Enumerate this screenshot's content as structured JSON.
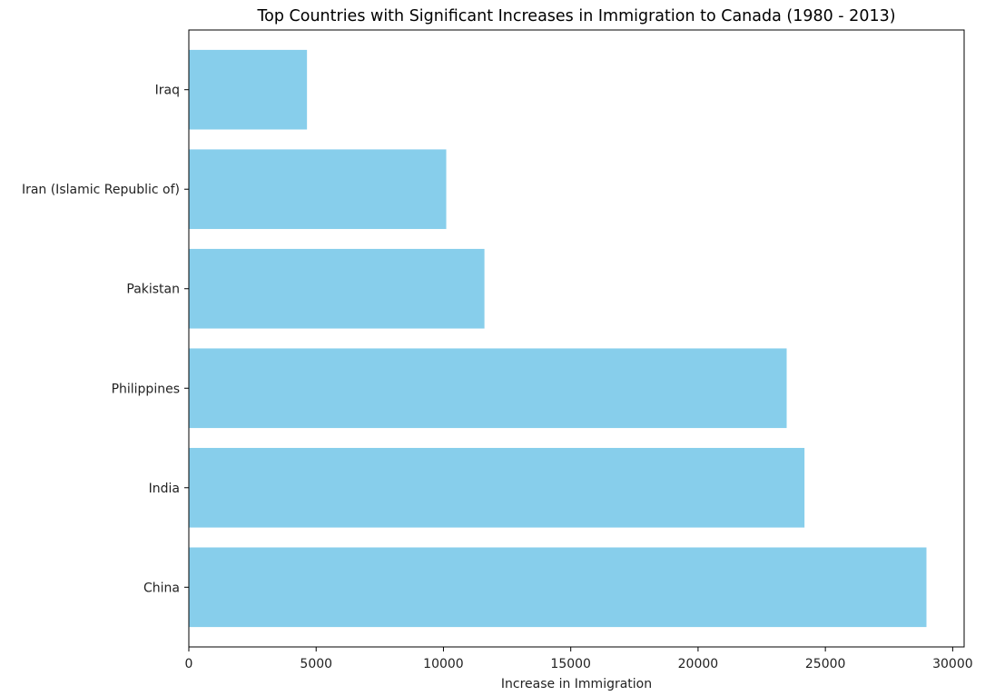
{
  "chart_data": {
    "type": "bar",
    "orientation": "horizontal",
    "title": "Top Countries with Significant Increases in Immigration to Canada (1980 - 2013)",
    "xlabel": "Increase in Immigration",
    "ylabel": "",
    "categories": [
      "China",
      "India",
      "Philippines",
      "Pakistan",
      "Iran (Islamic Republic of)",
      "Iraq"
    ],
    "values": [
      28970,
      24180,
      23480,
      11610,
      10110,
      4640
    ],
    "xlim": [
      0,
      30450
    ],
    "xticks": [
      0,
      5000,
      10000,
      15000,
      20000,
      25000,
      30000
    ],
    "xtick_labels": [
      "0",
      "5000",
      "10000",
      "15000",
      "20000",
      "25000",
      "30000"
    ],
    "bar_color": "#87ceeb",
    "grid": false,
    "legend": "none"
  }
}
